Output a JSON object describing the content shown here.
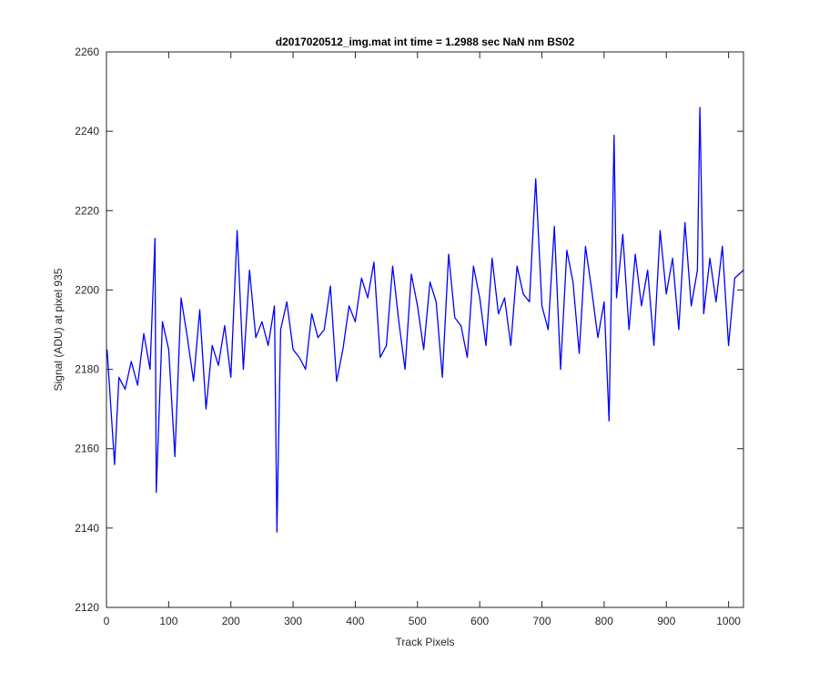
{
  "chart_data": {
    "type": "line",
    "title": "d2017020512_img.mat int time = 1.2988 sec  NaN nm BS02",
    "xlabel": "Track Pixels",
    "ylabel": "Signal (ADU) at pixel 935",
    "xlim": [
      0,
      1024
    ],
    "ylim": [
      2120,
      2260
    ],
    "xticks": [
      "0",
      "100",
      "200",
      "300",
      "400",
      "500",
      "600",
      "700",
      "800",
      "900",
      "1000"
    ],
    "yticks": [
      "2120",
      "2140",
      "2160",
      "2180",
      "2200",
      "2220",
      "2240",
      "2260"
    ],
    "grid": false,
    "legend": "none",
    "series_color": "#0000ff",
    "series": [
      {
        "x": [
          1,
          13,
          20,
          30,
          40,
          50,
          60,
          70,
          78,
          80,
          90,
          100,
          110,
          120,
          130,
          140,
          150,
          160,
          170,
          180,
          190,
          200,
          210,
          220,
          230,
          240,
          250,
          260,
          270,
          274,
          280,
          290,
          300,
          310,
          320,
          330,
          340,
          350,
          360,
          370,
          380,
          390,
          400,
          410,
          420,
          430,
          440,
          450,
          460,
          470,
          480,
          490,
          500,
          510,
          520,
          530,
          540,
          550,
          560,
          570,
          580,
          590,
          600,
          610,
          620,
          630,
          640,
          650,
          660,
          670,
          680,
          690,
          700,
          710,
          720,
          730,
          740,
          750,
          760,
          770,
          780,
          790,
          800,
          808,
          816,
          820,
          830,
          840,
          850,
          860,
          870,
          880,
          890,
          900,
          910,
          920,
          930,
          940,
          950,
          954,
          960,
          970,
          980,
          990,
          1000,
          1010,
          1024
        ],
        "y": [
          2185,
          2156,
          2178,
          2175,
          2182,
          2176,
          2189,
          2180,
          2213,
          2149,
          2192,
          2185,
          2158,
          2198,
          2188,
          2177,
          2195,
          2170,
          2186,
          2181,
          2191,
          2178,
          2215,
          2180,
          2205,
          2188,
          2192,
          2186,
          2196,
          2139,
          2190,
          2197,
          2185,
          2183,
          2180,
          2194,
          2188,
          2190,
          2201,
          2177,
          2185,
          2196,
          2192,
          2203,
          2198,
          2207,
          2183,
          2186,
          2206,
          2192,
          2180,
          2204,
          2196,
          2185,
          2202,
          2197,
          2178,
          2209,
          2193,
          2191,
          2183,
          2206,
          2198,
          2186,
          2208,
          2194,
          2198,
          2186,
          2206,
          2199,
          2197,
          2228,
          2196,
          2190,
          2216,
          2180,
          2210,
          2202,
          2184,
          2211,
          2200,
          2188,
          2197,
          2167,
          2239,
          2198,
          2214,
          2190,
          2209,
          2196,
          2205,
          2186,
          2215,
          2199,
          2208,
          2190,
          2217,
          2196,
          2205,
          2246,
          2194,
          2208,
          2197,
          2211,
          2186,
          2203,
          2205
        ]
      }
    ]
  }
}
